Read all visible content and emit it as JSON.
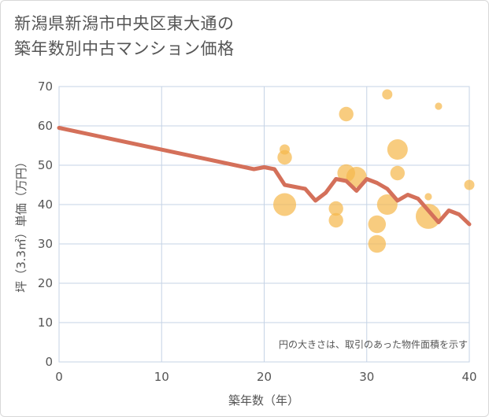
{
  "chart_data": {
    "type": "scatter",
    "title_lines": [
      "新潟県新潟市中央区東大通の",
      "築年数別中古マンション価格"
    ],
    "xlabel": "築年数（年）",
    "ylabel": "坪（3.3㎡）単価（万円）",
    "xlim": [
      0,
      40
    ],
    "ylim": [
      0,
      70
    ],
    "x_ticks": [
      0,
      10,
      20,
      30,
      40
    ],
    "y_ticks": [
      0,
      10,
      20,
      30,
      40,
      50,
      60,
      70
    ],
    "grid": true,
    "note": "円の大きさは、取引のあった物件面積を示す",
    "colors": {
      "bubble": "#f5b94d",
      "line": "#d4705a",
      "grid": "#c5d3e6",
      "text": "#555555"
    },
    "bubbles": [
      {
        "x": 22,
        "y": 54,
        "size": 1
      },
      {
        "x": 22,
        "y": 52,
        "size": 2
      },
      {
        "x": 22,
        "y": 40,
        "size": 5
      },
      {
        "x": 27,
        "y": 39,
        "size": 2
      },
      {
        "x": 27,
        "y": 36,
        "size": 2
      },
      {
        "x": 28,
        "y": 63,
        "size": 2
      },
      {
        "x": 28,
        "y": 48,
        "size": 3
      },
      {
        "x": 29,
        "y": 47,
        "size": 4
      },
      {
        "x": 31,
        "y": 35,
        "size": 3
      },
      {
        "x": 31,
        "y": 30,
        "size": 3
      },
      {
        "x": 32,
        "y": 68,
        "size": 1
      },
      {
        "x": 32,
        "y": 40,
        "size": 4
      },
      {
        "x": 33,
        "y": 54,
        "size": 4
      },
      {
        "x": 33,
        "y": 48,
        "size": 2
      },
      {
        "x": 36,
        "y": 42,
        "size": 0.5
      },
      {
        "x": 36,
        "y": 37,
        "size": 6
      },
      {
        "x": 37,
        "y": 65,
        "size": 0.5
      },
      {
        "x": 40,
        "y": 45,
        "size": 1
      }
    ],
    "trend_line": {
      "x": [
        0,
        19,
        20,
        21,
        22,
        23,
        24,
        25,
        26,
        27,
        28,
        29,
        30,
        31,
        32,
        33,
        34,
        35,
        36,
        37,
        38,
        39,
        40
      ],
      "y": [
        59.5,
        49,
        49.5,
        49,
        45,
        44.5,
        44,
        41,
        43,
        46.5,
        46,
        43.5,
        46.5,
        45.5,
        44,
        41,
        42.5,
        41.5,
        38.5,
        35.5,
        38.5,
        37.5,
        35
      ]
    }
  }
}
